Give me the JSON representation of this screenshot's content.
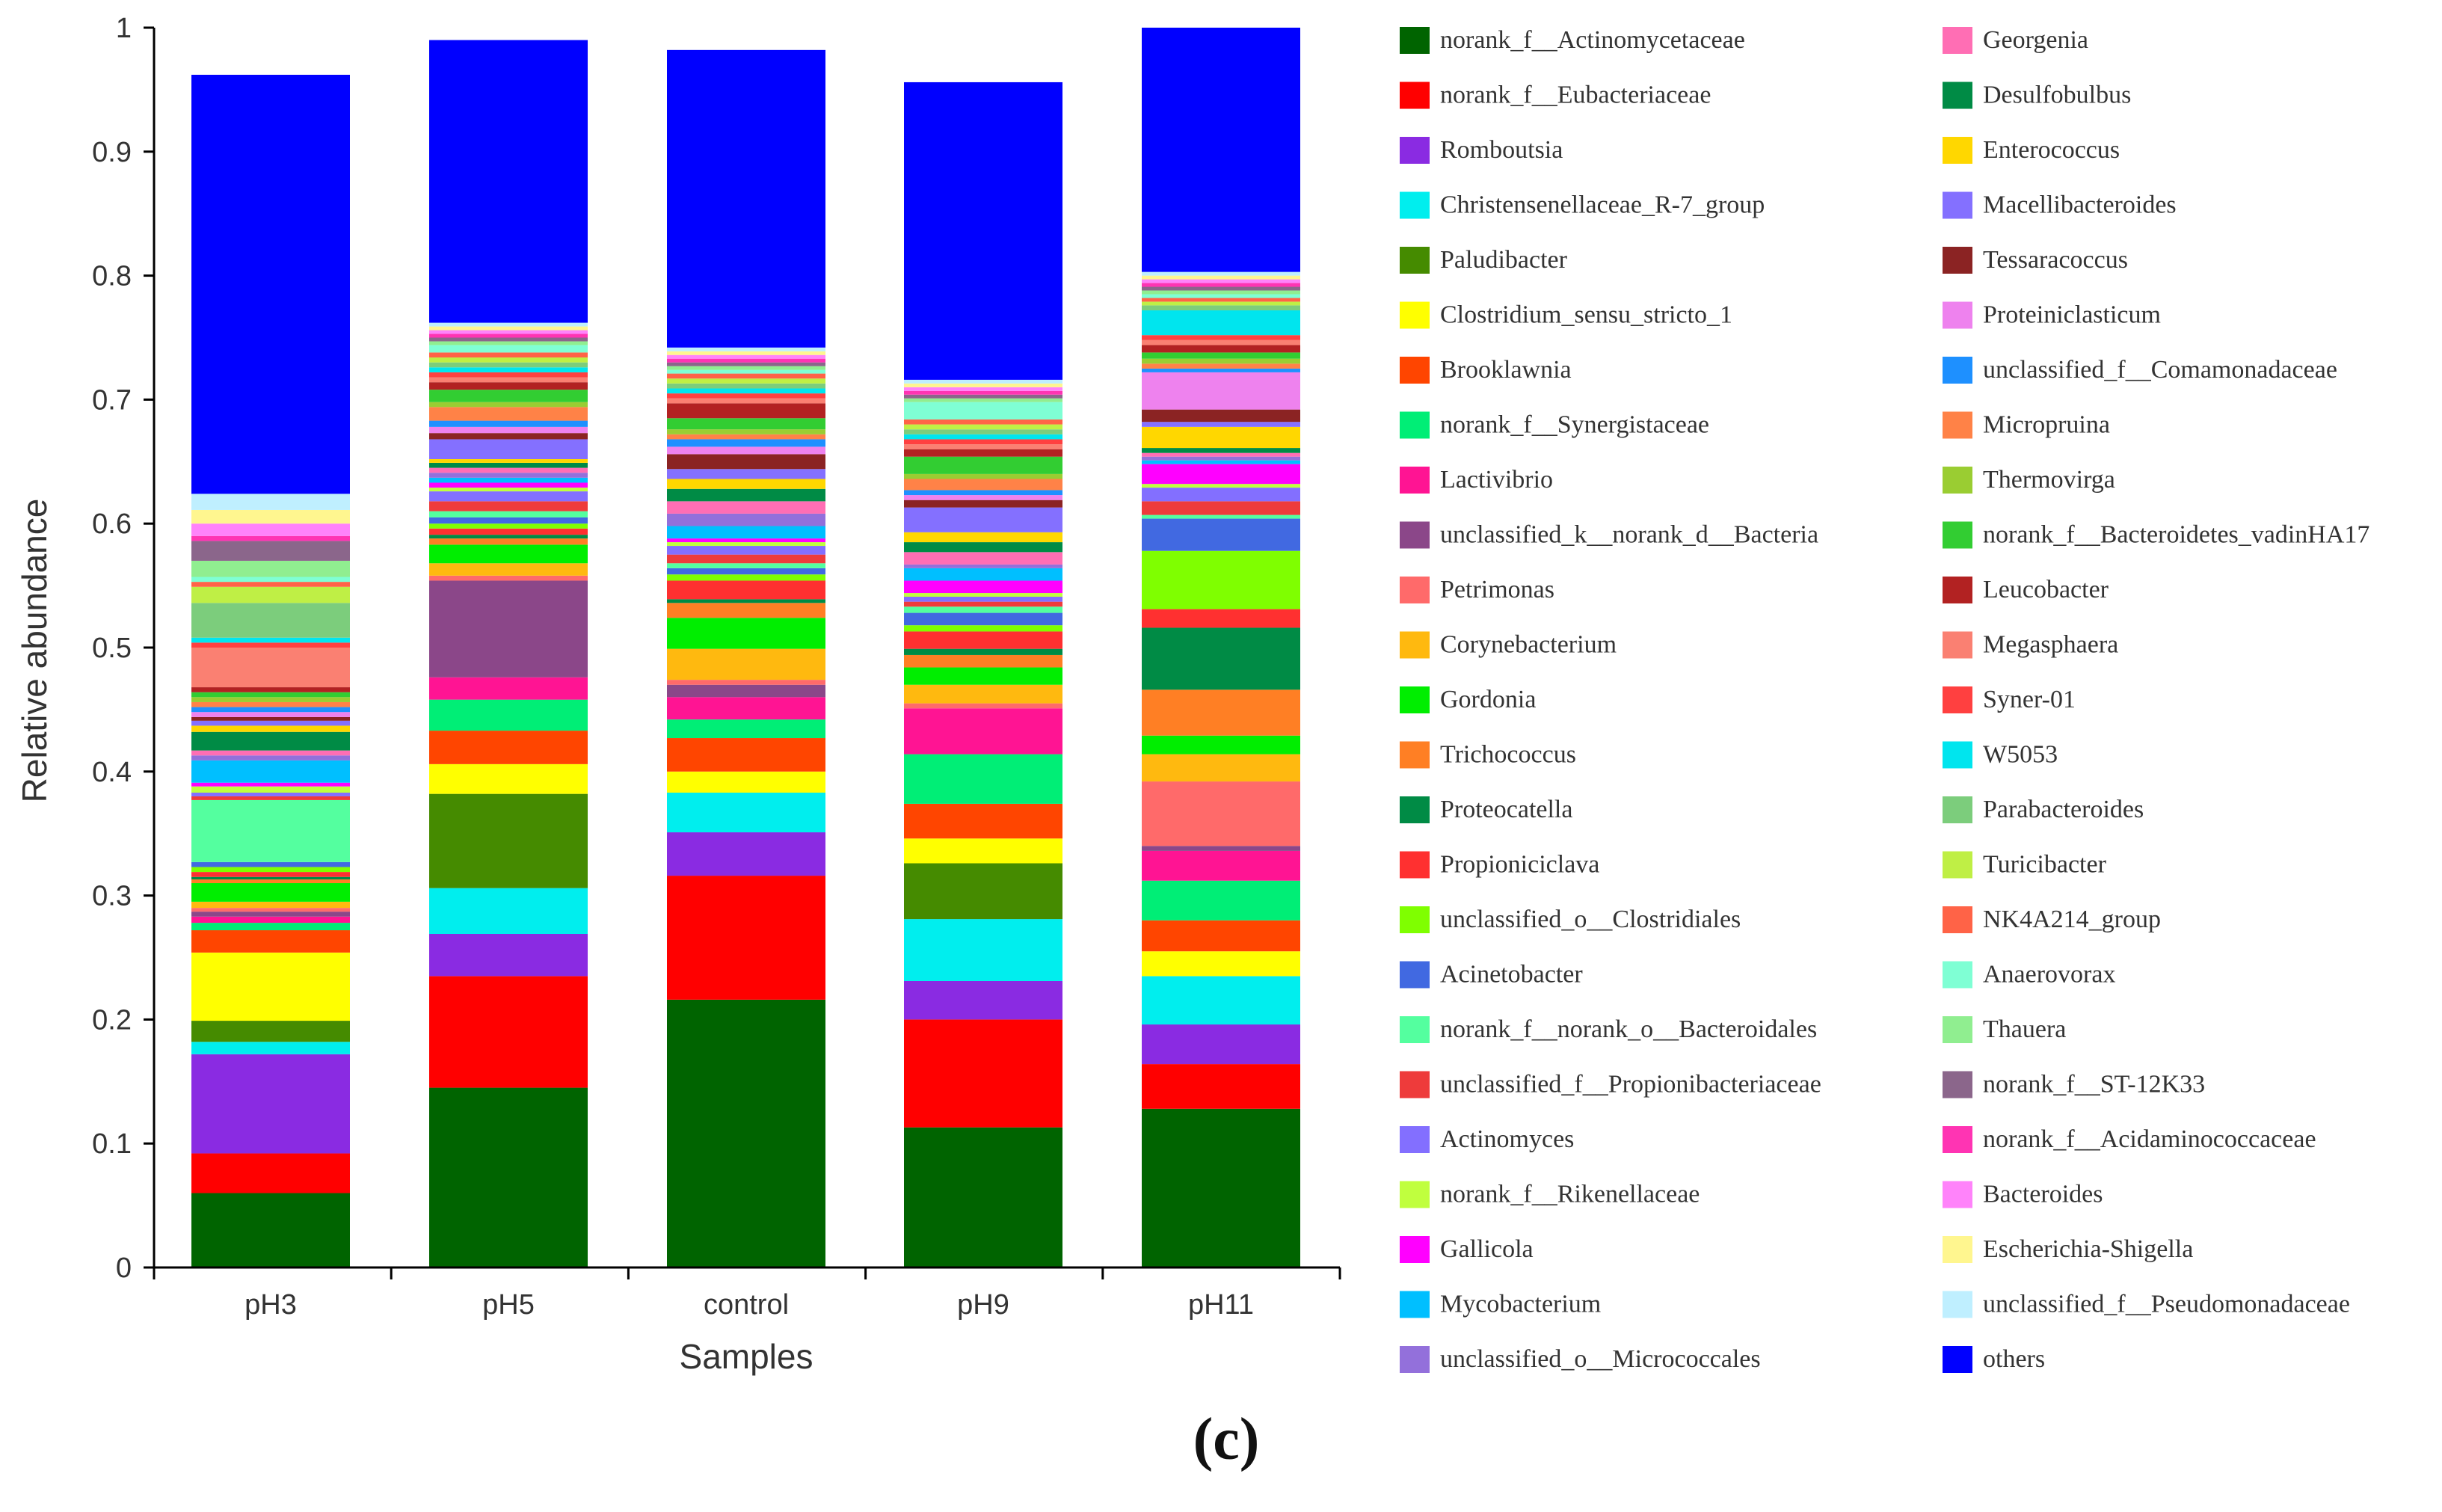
{
  "panel_label": "(c)",
  "chart_data": {
    "type": "bar",
    "stacked": true,
    "title": "",
    "xlabel": "Samples",
    "ylabel": "Relative abundance",
    "ylim": [
      0,
      1
    ],
    "yticks": [
      "0",
      "0.1",
      "0.2",
      "0.3",
      "0.4",
      "0.5",
      "0.6",
      "0.7",
      "0.8",
      "0.9",
      "1"
    ],
    "categories": [
      "pH3",
      "pH5",
      "control",
      "pH9",
      "pH11"
    ],
    "legend_position": "right",
    "series": [
      {
        "name": "norank_f__Actinomycetaceae",
        "color": "#006400",
        "values": [
          0.06,
          0.145,
          0.216,
          0.113,
          0.128
        ]
      },
      {
        "name": "norank_f__Eubacteriaceae",
        "color": "#ff0000",
        "values": [
          0.032,
          0.09,
          0.1,
          0.087,
          0.036
        ]
      },
      {
        "name": "Romboutsia",
        "color": "#8a2be2",
        "values": [
          0.08,
          0.034,
          0.035,
          0.031,
          0.032
        ]
      },
      {
        "name": "Christensenellaceae_R-7_group",
        "color": "#00eeee",
        "values": [
          0.01,
          0.037,
          0.032,
          0.05,
          0.039
        ]
      },
      {
        "name": "Paludibacter",
        "color": "#458b00",
        "values": [
          0.017,
          0.076,
          0.0,
          0.045,
          0.0
        ]
      },
      {
        "name": "Clostridium_sensu_stricto_1",
        "color": "#ffff00",
        "values": [
          0.055,
          0.024,
          0.017,
          0.02,
          0.02
        ]
      },
      {
        "name": "Brooklawnia",
        "color": "#ff4500",
        "values": [
          0.018,
          0.027,
          0.027,
          0.028,
          0.025
        ]
      },
      {
        "name": "norank_f__Synergistaceae",
        "color": "#00ee76",
        "values": [
          0.006,
          0.025,
          0.015,
          0.04,
          0.032
        ]
      },
      {
        "name": "Lactivibrio",
        "color": "#ff1493",
        "values": [
          0.005,
          0.018,
          0.018,
          0.037,
          0.024
        ]
      },
      {
        "name": "unclassified_k__norank_d__Bacteria",
        "color": "#8b4789",
        "values": [
          0.004,
          0.078,
          0.01,
          0.0,
          0.004
        ]
      },
      {
        "name": "Petrimonas",
        "color": "#ff6a6a",
        "values": [
          0.003,
          0.004,
          0.004,
          0.004,
          0.052
        ]
      },
      {
        "name": "Corynebacterium",
        "color": "#ffb90f",
        "values": [
          0.005,
          0.01,
          0.025,
          0.015,
          0.022
        ]
      },
      {
        "name": "Gordonia",
        "color": "#00ee00",
        "values": [
          0.015,
          0.015,
          0.025,
          0.014,
          0.015
        ]
      },
      {
        "name": "Trichococcus",
        "color": "#ff7f24",
        "values": [
          0.003,
          0.005,
          0.012,
          0.01,
          0.037
        ]
      },
      {
        "name": "Proteocatella",
        "color": "#008b45",
        "values": [
          0.002,
          0.003,
          0.003,
          0.005,
          0.05
        ]
      },
      {
        "name": "Propioniciclava",
        "color": "#ff3030",
        "values": [
          0.004,
          0.005,
          0.015,
          0.014,
          0.015
        ]
      },
      {
        "name": "unclassified_o__Clostridiales",
        "color": "#7fff00",
        "values": [
          0.004,
          0.004,
          0.005,
          0.005,
          0.047
        ]
      },
      {
        "name": "Acinetobacter",
        "color": "#4169e1",
        "values": [
          0.004,
          0.005,
          0.005,
          0.01,
          0.026
        ]
      },
      {
        "name": "norank_f__norank_o__Bacteroidales",
        "color": "#54ff9f",
        "values": [
          0.05,
          0.005,
          0.004,
          0.005,
          0.003
        ]
      },
      {
        "name": "unclassified_f__Propionibacteriaceae",
        "color": "#ee3b3b",
        "values": [
          0.003,
          0.008,
          0.007,
          0.004,
          0.011
        ]
      },
      {
        "name": "Actinomyces",
        "color": "#836fff",
        "values": [
          0.003,
          0.008,
          0.007,
          0.004,
          0.011
        ]
      },
      {
        "name": "norank_f__Rikenellaceae",
        "color": "#c0ff3e",
        "values": [
          0.005,
          0.003,
          0.003,
          0.003,
          0.003
        ]
      },
      {
        "name": "Gallicola",
        "color": "#ff00ff",
        "values": [
          0.003,
          0.004,
          0.003,
          0.01,
          0.016
        ]
      },
      {
        "name": "Mycobacterium",
        "color": "#00bfff",
        "values": [
          0.018,
          0.004,
          0.01,
          0.01,
          0.003
        ]
      },
      {
        "name": "unclassified_o__Micrococcales",
        "color": "#9370db",
        "values": [
          0.004,
          0.004,
          0.01,
          0.003,
          0.003
        ]
      },
      {
        "name": "Georgenia",
        "color": "#ff6eb4",
        "values": [
          0.004,
          0.004,
          0.01,
          0.01,
          0.003
        ]
      },
      {
        "name": "Desulfobulbus",
        "color": "#008b45",
        "values": [
          0.015,
          0.004,
          0.01,
          0.008,
          0.004
        ]
      },
      {
        "name": "Enterococcus",
        "color": "#ffd700",
        "values": [
          0.005,
          0.003,
          0.008,
          0.008,
          0.017
        ]
      },
      {
        "name": "Macellibacteroides",
        "color": "#8470ff",
        "values": [
          0.004,
          0.016,
          0.008,
          0.02,
          0.004
        ]
      },
      {
        "name": "Tessaracoccus",
        "color": "#8b2323",
        "values": [
          0.003,
          0.005,
          0.012,
          0.006,
          0.01
        ]
      },
      {
        "name": "Proteiniclasticum",
        "color": "#ee82ee",
        "values": [
          0.004,
          0.005,
          0.006,
          0.004,
          0.03
        ]
      },
      {
        "name": "unclassified_f__Comamonadaceae",
        "color": "#1e90ff",
        "values": [
          0.004,
          0.005,
          0.006,
          0.004,
          0.003
        ]
      },
      {
        "name": "Micropruina",
        "color": "#ff8247",
        "values": [
          0.004,
          0.011,
          0.004,
          0.009,
          0.004
        ]
      },
      {
        "name": "Thermovirga",
        "color": "#9acd32",
        "values": [
          0.004,
          0.004,
          0.004,
          0.004,
          0.004
        ]
      },
      {
        "name": "norank_f__Bacteroidetes_vadinHA17",
        "color": "#32cd32",
        "values": [
          0.004,
          0.01,
          0.009,
          0.014,
          0.005
        ]
      },
      {
        "name": "Leucobacter",
        "color": "#b22222",
        "values": [
          0.004,
          0.006,
          0.012,
          0.006,
          0.006
        ]
      },
      {
        "name": "Megasphaera",
        "color": "#fa8072",
        "values": [
          0.032,
          0.004,
          0.004,
          0.004,
          0.004
        ]
      },
      {
        "name": "Syner-01",
        "color": "#ff4040",
        "values": [
          0.004,
          0.004,
          0.004,
          0.004,
          0.004
        ]
      },
      {
        "name": "W5053",
        "color": "#00e5ee",
        "values": [
          0.004,
          0.004,
          0.004,
          0.004,
          0.02
        ]
      },
      {
        "name": "Parabacteroides",
        "color": "#7ccd7c",
        "values": [
          0.028,
          0.004,
          0.004,
          0.004,
          0.004
        ]
      },
      {
        "name": "Turicibacter",
        "color": "#bfef45",
        "values": [
          0.013,
          0.004,
          0.004,
          0.004,
          0.003
        ]
      },
      {
        "name": "NK4A214_group",
        "color": "#ff6347",
        "values": [
          0.004,
          0.004,
          0.004,
          0.004,
          0.003
        ]
      },
      {
        "name": "Anaerovorax",
        "color": "#7fffd4",
        "values": [
          0.004,
          0.006,
          0.003,
          0.014,
          0.003
        ]
      },
      {
        "name": "Thauera",
        "color": "#90ee90",
        "values": [
          0.013,
          0.003,
          0.003,
          0.003,
          0.003
        ]
      },
      {
        "name": "norank_f__ST-12K33",
        "color": "#8b668b",
        "values": [
          0.016,
          0.003,
          0.003,
          0.003,
          0.003
        ]
      },
      {
        "name": "norank_f__Acidaminococcaceae",
        "color": "#ff34b3",
        "values": [
          0.004,
          0.003,
          0.003,
          0.003,
          0.003
        ]
      },
      {
        "name": "Bacteroides",
        "color": "#ff83fa",
        "values": [
          0.01,
          0.003,
          0.003,
          0.003,
          0.003
        ]
      },
      {
        "name": "Escherichia-Shigella",
        "color": "#fff68f",
        "values": [
          0.011,
          0.003,
          0.003,
          0.003,
          0.003
        ]
      },
      {
        "name": "unclassified_f__Pseudomonadaceae",
        "color": "#bfefff",
        "values": [
          0.013,
          0.003,
          0.003,
          0.003,
          0.003
        ]
      },
      {
        "name": "others",
        "color": "#0000ff",
        "values": [
          0.338,
          0.228,
          0.24,
          0.24,
          0.202
        ]
      }
    ]
  }
}
